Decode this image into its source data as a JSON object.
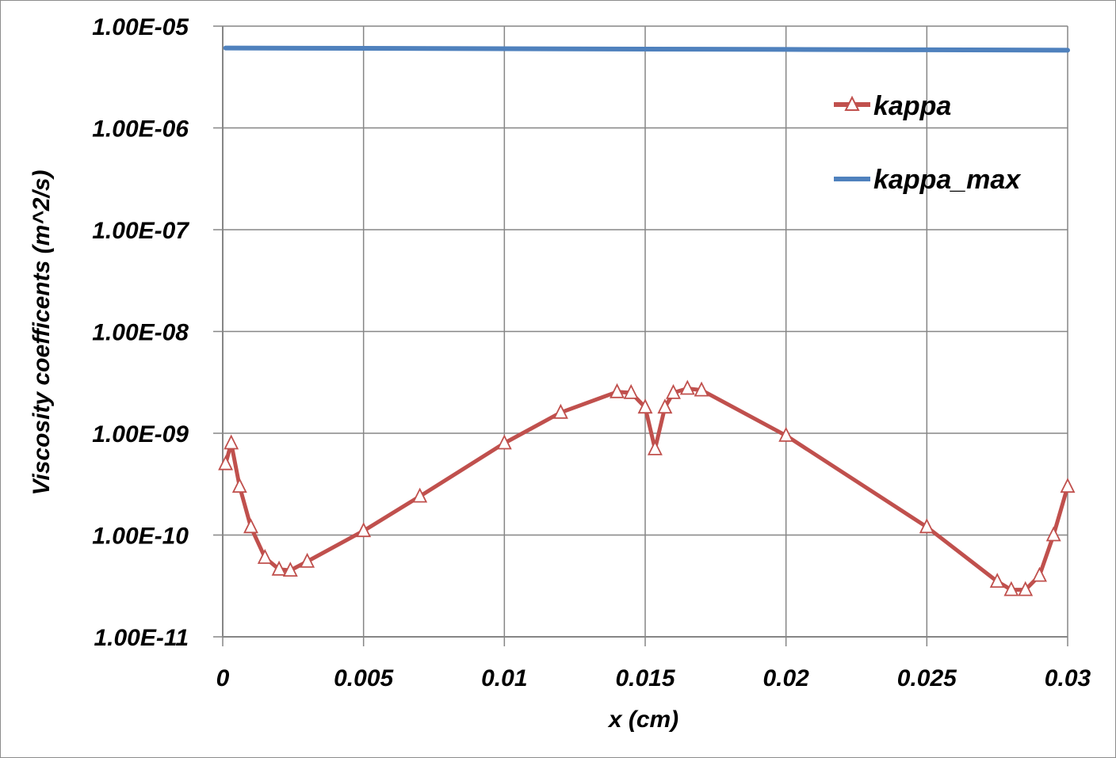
{
  "chart_data": {
    "type": "line",
    "xlabel": "x (cm)",
    "ylabel": "Viscosity coefficents (m^2/s)",
    "xlim": [
      0,
      0.03
    ],
    "ylim": [
      1e-11,
      1e-05
    ],
    "yscale": "log",
    "grid": true,
    "legend_position": "top-right",
    "x_ticks": [
      0,
      0.005,
      0.01,
      0.015,
      0.02,
      0.025,
      0.03
    ],
    "x_tick_labels": [
      "0",
      "0.005",
      "0.01",
      "0.015",
      "0.02",
      "0.025",
      "0.03"
    ],
    "y_ticks": [
      1e-11,
      1e-10,
      1e-09,
      1e-08,
      1e-07,
      1e-06,
      1e-05
    ],
    "y_tick_labels": [
      "1.00E-11",
      "1.00E-10",
      "1.00E-09",
      "1.00E-08",
      "1.00E-07",
      "1.00E-06",
      "1.00E-05"
    ],
    "series": [
      {
        "name": "kappa",
        "color": "#c0504d",
        "marker": "triangle-open",
        "x": [
          0.0001,
          0.0003,
          0.0006,
          0.001,
          0.0015,
          0.002,
          0.0024,
          0.003,
          0.005,
          0.007,
          0.01,
          0.012,
          0.014,
          0.0145,
          0.015,
          0.01535,
          0.0157,
          0.016,
          0.0165,
          0.017,
          0.02,
          0.025,
          0.0275,
          0.028,
          0.0285,
          0.029,
          0.0295,
          0.03
        ],
        "y": [
          5e-10,
          8e-10,
          3e-10,
          1.2e-10,
          6e-11,
          4.6e-11,
          4.5e-11,
          5.5e-11,
          1.1e-10,
          2.4e-10,
          8e-10,
          1.6e-09,
          2.55e-09,
          2.5e-09,
          1.8e-09,
          7e-10,
          1.8e-09,
          2.5e-09,
          2.75e-09,
          2.65e-09,
          9.5e-10,
          1.2e-10,
          3.5e-11,
          2.9e-11,
          2.9e-11,
          4e-11,
          1e-10,
          3e-10
        ]
      },
      {
        "name": "kappa_max",
        "color": "#4f81bd",
        "marker": "none",
        "x": [
          0.0001,
          0.005,
          0.01,
          0.015,
          0.02,
          0.025,
          0.03
        ],
        "y": [
          6.1e-06,
          6.05e-06,
          6e-06,
          5.95e-06,
          5.9e-06,
          5.85e-06,
          5.8e-06
        ]
      }
    ]
  }
}
